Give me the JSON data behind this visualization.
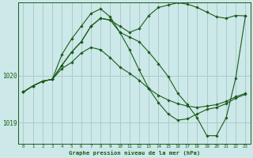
{
  "title": "Graphe pression niveau de la mer (hPa)",
  "bg_color": "#cce8e8",
  "line_color": "#1a5c1a",
  "grid_color": "#aacccc",
  "xlim": [
    -0.5,
    23.5
  ],
  "ylim": [
    1018.55,
    1021.55
  ],
  "yticks": [
    1019,
    1020
  ],
  "xticks": [
    0,
    1,
    2,
    3,
    4,
    5,
    6,
    7,
    8,
    9,
    10,
    11,
    12,
    13,
    14,
    15,
    16,
    17,
    18,
    19,
    20,
    21,
    22,
    23
  ],
  "series": [
    {
      "x": [
        0,
        1,
        2,
        3,
        4,
        5,
        6,
        7,
        8,
        9,
        10,
        11,
        12,
        13,
        14,
        15,
        16,
        17,
        18,
        19,
        20,
        21,
        22,
        23
      ],
      "y": [
        1019.65,
        1019.78,
        1019.88,
        1019.92,
        1020.22,
        1020.5,
        1020.72,
        1021.05,
        1021.22,
        1021.18,
        1020.92,
        1020.82,
        1020.72,
        1020.5,
        1020.25,
        1019.98,
        1019.62,
        1019.38,
        1019.1,
        1018.72,
        1018.72,
        1019.1,
        1019.95,
        1021.27
      ]
    },
    {
      "x": [
        0,
        1,
        2,
        3,
        4,
        5,
        6,
        7,
        8,
        9,
        10,
        11,
        12,
        13,
        14,
        15,
        16,
        17,
        18,
        19,
        20,
        21,
        22,
        23
      ],
      "y": [
        1019.65,
        1019.78,
        1019.88,
        1019.92,
        1020.45,
        1020.78,
        1021.05,
        1021.32,
        1021.42,
        1021.25,
        1020.92,
        1020.55,
        1020.12,
        1019.72,
        1019.42,
        1019.18,
        1019.05,
        1019.08,
        1019.18,
        1019.28,
        1019.32,
        1019.4,
        1019.52,
        1019.6
      ]
    },
    {
      "x": [
        0,
        1,
        2,
        3,
        4,
        5,
        6,
        7,
        8,
        9,
        10,
        11,
        12,
        13,
        14,
        15,
        16,
        17,
        18,
        19,
        20,
        21,
        22,
        23
      ],
      "y": [
        1019.65,
        1019.78,
        1019.88,
        1019.92,
        1020.15,
        1020.28,
        1020.48,
        1020.6,
        1020.55,
        1020.38,
        1020.18,
        1020.05,
        1019.9,
        1019.72,
        1019.58,
        1019.48,
        1019.4,
        1019.35,
        1019.32,
        1019.35,
        1019.38,
        1019.45,
        1019.55,
        1019.62
      ]
    },
    {
      "x": [
        0,
        1,
        2,
        3,
        4,
        5,
        6,
        7,
        8,
        9,
        10,
        11,
        12,
        13,
        14,
        15,
        16,
        17,
        18,
        19,
        20,
        21,
        22,
        23
      ],
      "y": [
        1019.65,
        1019.78,
        1019.88,
        1019.92,
        1020.22,
        1020.5,
        1020.72,
        1021.05,
        1021.22,
        1021.18,
        1021.05,
        1020.92,
        1021.0,
        1021.28,
        1021.45,
        1021.5,
        1021.55,
        1021.52,
        1021.45,
        1021.35,
        1021.25,
        1021.22,
        1021.28,
        1021.27
      ]
    }
  ]
}
